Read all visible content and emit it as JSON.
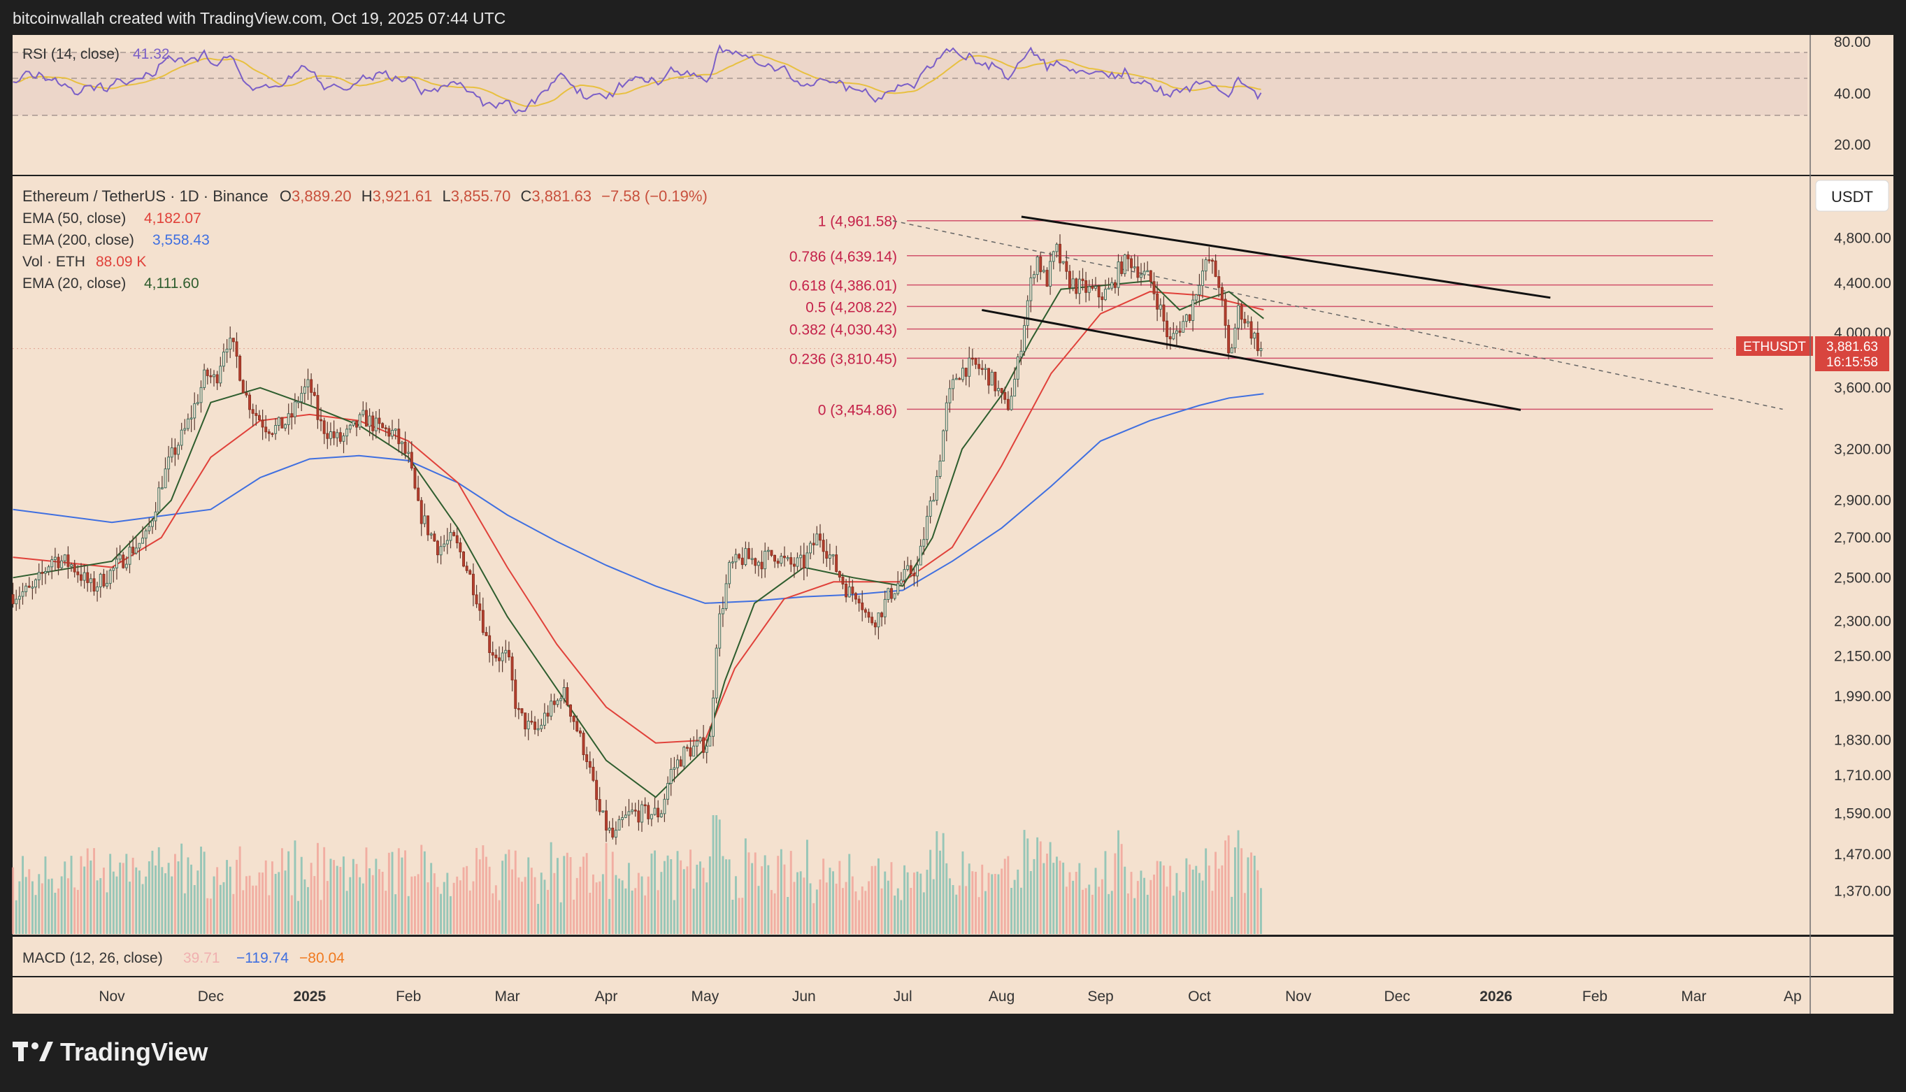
{
  "header": {
    "credit": "bitcoinwallah created with TradingView.com, Oct 19, 2025 07:44 UTC"
  },
  "footer": {
    "logo_text": "TradingView"
  },
  "colors": {
    "background": "#f4e1cf",
    "frame": "#1f1f1f",
    "up": "#6aa58f",
    "down": "#c8503d",
    "ema20": "#2e5d2e",
    "ema50": "#e0413a",
    "ema200": "#3f6fe0",
    "fib_line": "#c4224a",
    "rsi_line": "#7b5fc7",
    "rsi_ma": "#e8c040",
    "vol_up": "#86c1b3",
    "vol_down": "#f0a49a",
    "price_tag": "#d8453e"
  },
  "legend": {
    "symbol_line": "Ethereum / TetherUS · 1D · Binance",
    "ohlc": [
      {
        "label": "O",
        "value": "3,889.20"
      },
      {
        "label": "H",
        "value": "3,921.61"
      },
      {
        "label": "L",
        "value": "3,855.70"
      },
      {
        "label": "C",
        "value": "3,881.63"
      }
    ],
    "change": "−7.58 (−0.19%)",
    "indicators": [
      {
        "name": "EMA (50, close)",
        "value": "4,182.07",
        "color": "#e0413a"
      },
      {
        "name": "EMA (200, close)",
        "value": "3,558.43",
        "color": "#3f6fe0"
      },
      {
        "name": "Vol · ETH",
        "value": "88.09 K",
        "color": "#e0413a"
      },
      {
        "name": "EMA (20, close)",
        "value": "4,111.60",
        "color": "#2e5d2e"
      }
    ]
  },
  "rsi": {
    "title": "RSI (14, close)",
    "value": "41.32",
    "levels": [
      "80.00",
      "40.00",
      "20.00"
    ]
  },
  "macd": {
    "title": "MACD (12, 26, close)",
    "values": [
      {
        "value": "39.71",
        "color": "#f0b0b0"
      },
      {
        "value": "−119.74",
        "color": "#3f6fe0"
      },
      {
        "value": "−80.04",
        "color": "#f07a20"
      }
    ]
  },
  "currency_button": "USDT",
  "price_tag": {
    "symbol": "ETHUSDT",
    "price": "3,881.63",
    "countdown": "16:15:58"
  },
  "chart_data": {
    "type": "candlestick",
    "symbol": "ETHUSDT",
    "scale": "log",
    "price_axis_labels": [
      "4,800.00",
      "4,400.00",
      "4,000.00",
      "3,600.00",
      "3,200.00",
      "2,900.00",
      "2,700.00",
      "2,500.00",
      "2,300.00",
      "2,150.00",
      "1,990.00",
      "1,830.00",
      "1,710.00",
      "1,590.00",
      "1,470.00",
      "1,370.00"
    ],
    "price_axis_values": [
      4800,
      4400,
      4000,
      3600,
      3200,
      2900,
      2700,
      2500,
      2300,
      2150,
      1990,
      1830,
      1710,
      1590,
      1470,
      1370
    ],
    "time_axis_labels": [
      {
        "label": "Nov",
        "month_index": 0
      },
      {
        "label": "Dec",
        "month_index": 1
      },
      {
        "label": "2025",
        "month_index": 2
      },
      {
        "label": "Feb",
        "month_index": 3
      },
      {
        "label": "Mar",
        "month_index": 4
      },
      {
        "label": "Apr",
        "month_index": 5
      },
      {
        "label": "May",
        "month_index": 6
      },
      {
        "label": "Jun",
        "month_index": 7
      },
      {
        "label": "Jul",
        "month_index": 8
      },
      {
        "label": "Aug",
        "month_index": 9
      },
      {
        "label": "Sep",
        "month_index": 10
      },
      {
        "label": "Oct",
        "month_index": 11
      },
      {
        "label": "Nov",
        "month_index": 12
      },
      {
        "label": "Dec",
        "month_index": 13
      },
      {
        "label": "2026",
        "month_index": 14
      },
      {
        "label": "Feb",
        "month_index": 15
      },
      {
        "label": "Mar",
        "month_index": 16
      },
      {
        "label": "Ap",
        "month_index": 17
      }
    ],
    "close_series": [
      [
        -1.0,
        2420
      ],
      [
        -0.8,
        2440
      ],
      [
        -0.6,
        2600
      ],
      [
        -0.4,
        2560
      ],
      [
        -0.2,
        2450
      ],
      [
        0.0,
        2530
      ],
      [
        0.2,
        2640
      ],
      [
        0.35,
        2700
      ],
      [
        0.5,
        3000
      ],
      [
        0.6,
        3150
      ],
      [
        0.75,
        3330
      ],
      [
        0.85,
        3500
      ],
      [
        0.95,
        3700
      ],
      [
        1.05,
        3650
      ],
      [
        1.15,
        3950
      ],
      [
        1.25,
        3850
      ],
      [
        1.35,
        3550
      ],
      [
        1.45,
        3430
      ],
      [
        1.55,
        3350
      ],
      [
        1.65,
        3330
      ],
      [
        1.8,
        3380
      ],
      [
        1.9,
        3550
      ],
      [
        2.0,
        3620
      ],
      [
        2.1,
        3360
      ],
      [
        2.2,
        3300
      ],
      [
        2.3,
        3250
      ],
      [
        2.4,
        3300
      ],
      [
        2.55,
        3400
      ],
      [
        2.7,
        3330
      ],
      [
        2.85,
        3300
      ],
      [
        3.0,
        3140
      ],
      [
        3.1,
        2850
      ],
      [
        3.2,
        2740
      ],
      [
        3.3,
        2650
      ],
      [
        3.45,
        2690
      ],
      [
        3.55,
        2600
      ],
      [
        3.65,
        2470
      ],
      [
        3.7,
        2400
      ],
      [
        3.8,
        2200
      ],
      [
        3.9,
        2150
      ],
      [
        4.0,
        2150
      ],
      [
        4.1,
        1930
      ],
      [
        4.2,
        1880
      ],
      [
        4.3,
        1860
      ],
      [
        4.4,
        1930
      ],
      [
        4.5,
        1960
      ],
      [
        4.55,
        2020
      ],
      [
        4.65,
        1930
      ],
      [
        4.75,
        1820
      ],
      [
        4.8,
        1780
      ],
      [
        4.85,
        1700
      ],
      [
        4.92,
        1600
      ],
      [
        5.0,
        1550
      ],
      [
        5.08,
        1510
      ],
      [
        5.15,
        1560
      ],
      [
        5.25,
        1590
      ],
      [
        5.4,
        1590
      ],
      [
        5.55,
        1590
      ],
      [
        5.65,
        1720
      ],
      [
        5.8,
        1790
      ],
      [
        5.95,
        1810
      ],
      [
        6.05,
        1830
      ],
      [
        6.12,
        2250
      ],
      [
        6.25,
        2550
      ],
      [
        6.4,
        2600
      ],
      [
        6.55,
        2580
      ],
      [
        6.7,
        2620
      ],
      [
        6.85,
        2560
      ],
      [
        7.0,
        2570
      ],
      [
        7.15,
        2720
      ],
      [
        7.25,
        2620
      ],
      [
        7.35,
        2520
      ],
      [
        7.45,
        2430
      ],
      [
        7.55,
        2430
      ],
      [
        7.65,
        2300
      ],
      [
        7.75,
        2320
      ],
      [
        7.85,
        2410
      ],
      [
        7.95,
        2470
      ],
      [
        8.05,
        2520
      ],
      [
        8.15,
        2550
      ],
      [
        8.25,
        2800
      ],
      [
        8.35,
        3050
      ],
      [
        8.45,
        3500
      ],
      [
        8.55,
        3700
      ],
      [
        8.65,
        3750
      ],
      [
        8.75,
        3750
      ],
      [
        8.85,
        3700
      ],
      [
        8.95,
        3600
      ],
      [
        9.05,
        3450
      ],
      [
        9.15,
        3700
      ],
      [
        9.25,
        4200
      ],
      [
        9.35,
        4650
      ],
      [
        9.45,
        4400
      ],
      [
        9.55,
        4700
      ],
      [
        9.65,
        4450
      ],
      [
        9.75,
        4380
      ],
      [
        9.85,
        4350
      ],
      [
        10.0,
        4300
      ],
      [
        10.1,
        4340
      ],
      [
        10.2,
        4550
      ],
      [
        10.3,
        4600
      ],
      [
        10.4,
        4500
      ],
      [
        10.5,
        4430
      ],
      [
        10.6,
        4200
      ],
      [
        10.7,
        3920
      ],
      [
        10.8,
        4050
      ],
      [
        10.9,
        4150
      ],
      [
        11.0,
        4450
      ],
      [
        11.1,
        4600
      ],
      [
        11.2,
        4400
      ],
      [
        11.3,
        3800
      ],
      [
        11.4,
        4200
      ],
      [
        11.5,
        4050
      ],
      [
        11.6,
        3900
      ],
      [
        11.65,
        3881.63
      ]
    ],
    "ema20": [
      [
        -1.0,
        2500
      ],
      [
        0.0,
        2580
      ],
      [
        0.6,
        2900
      ],
      [
        1.0,
        3500
      ],
      [
        1.5,
        3600
      ],
      [
        2.0,
        3480
      ],
      [
        2.5,
        3350
      ],
      [
        3.0,
        3150
      ],
      [
        3.5,
        2750
      ],
      [
        4.0,
        2320
      ],
      [
        4.5,
        2020
      ],
      [
        5.0,
        1760
      ],
      [
        5.5,
        1640
      ],
      [
        6.0,
        1800
      ],
      [
        6.2,
        2050
      ],
      [
        6.5,
        2380
      ],
      [
        7.0,
        2550
      ],
      [
        7.5,
        2500
      ],
      [
        8.0,
        2460
      ],
      [
        8.3,
        2700
      ],
      [
        8.6,
        3200
      ],
      [
        9.0,
        3550
      ],
      [
        9.3,
        3950
      ],
      [
        9.6,
        4350
      ],
      [
        10.0,
        4380
      ],
      [
        10.5,
        4420
      ],
      [
        10.8,
        4180
      ],
      [
        11.0,
        4250
      ],
      [
        11.3,
        4330
      ],
      [
        11.65,
        4111.6
      ]
    ],
    "ema50": [
      [
        -1.0,
        2600
      ],
      [
        0.0,
        2550
      ],
      [
        0.5,
        2700
      ],
      [
        1.0,
        3150
      ],
      [
        1.5,
        3380
      ],
      [
        2.0,
        3420
      ],
      [
        2.5,
        3380
      ],
      [
        3.0,
        3250
      ],
      [
        3.5,
        3000
      ],
      [
        4.0,
        2550
      ],
      [
        4.5,
        2200
      ],
      [
        5.0,
        1950
      ],
      [
        5.5,
        1820
      ],
      [
        6.0,
        1830
      ],
      [
        6.3,
        2100
      ],
      [
        6.8,
        2400
      ],
      [
        7.3,
        2480
      ],
      [
        8.0,
        2480
      ],
      [
        8.5,
        2650
      ],
      [
        9.0,
        3100
      ],
      [
        9.5,
        3700
      ],
      [
        10.0,
        4150
      ],
      [
        10.5,
        4330
      ],
      [
        11.0,
        4300
      ],
      [
        11.3,
        4250
      ],
      [
        11.65,
        4182.07
      ]
    ],
    "ema200": [
      [
        -1.0,
        2850
      ],
      [
        0.0,
        2780
      ],
      [
        1.0,
        2850
      ],
      [
        1.5,
        3030
      ],
      [
        2.0,
        3140
      ],
      [
        2.5,
        3160
      ],
      [
        3.0,
        3130
      ],
      [
        3.5,
        3000
      ],
      [
        4.0,
        2820
      ],
      [
        4.5,
        2680
      ],
      [
        5.0,
        2560
      ],
      [
        5.5,
        2460
      ],
      [
        6.0,
        2380
      ],
      [
        6.5,
        2390
      ],
      [
        7.0,
        2410
      ],
      [
        7.5,
        2420
      ],
      [
        8.0,
        2440
      ],
      [
        8.5,
        2580
      ],
      [
        9.0,
        2750
      ],
      [
        9.5,
        2980
      ],
      [
        10.0,
        3250
      ],
      [
        10.5,
        3380
      ],
      [
        11.0,
        3480
      ],
      [
        11.3,
        3530
      ],
      [
        11.65,
        3558.43
      ]
    ],
    "fib_levels": [
      {
        "ratio": "1",
        "value": 4961.58,
        "label": "1 (4,961.58)"
      },
      {
        "ratio": "0.786",
        "value": 4639.14,
        "label": "0.786 (4,639.14)"
      },
      {
        "ratio": "0.618",
        "value": 4386.01,
        "label": "0.618 (4,386.01)"
      },
      {
        "ratio": "0.5",
        "value": 4208.22,
        "label": "0.5 (4,208.22)"
      },
      {
        "ratio": "0.382",
        "value": 4030.43,
        "label": "0.382 (4,030.43)"
      },
      {
        "ratio": "0.236",
        "value": 3810.45,
        "label": "0.236 (3,810.45)"
      },
      {
        "ratio": "0",
        "value": 3454.86,
        "label": "0 (3,454.86)"
      }
    ],
    "fib_range_months": [
      7.9,
      12.8
    ],
    "channel_upper": [
      [
        9.2,
        5000
      ],
      [
        14.55,
        4280
      ]
    ],
    "channel_lower": [
      [
        8.8,
        4180
      ],
      [
        14.25,
        3450
      ]
    ],
    "trend_dashed": [
      [
        7.9,
        4961.58
      ],
      [
        16.9,
        3454.86
      ]
    ],
    "rsi_levels_values": [
      70,
      50,
      30
    ],
    "rsi_axis_values": [
      80,
      40,
      20
    ]
  }
}
